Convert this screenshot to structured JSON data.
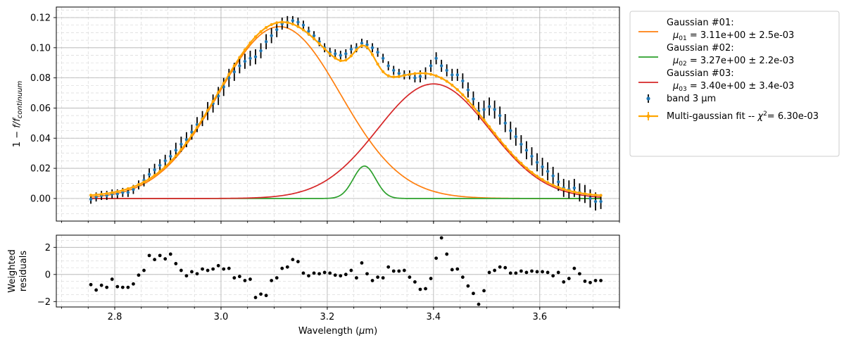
{
  "chart_data": {
    "type": "line",
    "x_axis": {
      "label": "Wavelength (μm)",
      "lim": [
        2.69,
        3.75
      ],
      "major_ticks": [
        2.8,
        3.0,
        3.2,
        3.4,
        3.6
      ],
      "tick_labels": [
        "2.8",
        "3.0",
        "3.2",
        "3.4",
        "3.6"
      ],
      "minor_step": 0.05
    },
    "top": {
      "ylabel": "1 − f/f_continuum",
      "ylim": [
        -0.015,
        0.127
      ],
      "yticks": [
        0.0,
        0.02,
        0.04,
        0.06,
        0.08,
        0.1,
        0.12
      ],
      "ytick_labels": [
        "0.00",
        "0.02",
        "0.04",
        "0.06",
        "0.08",
        "0.10",
        "0.12"
      ],
      "minor_step": 0.005,
      "grid": true
    },
    "bottom": {
      "ylabel_line1": "Weighted",
      "ylabel_line2": "residuals",
      "ylim": [
        -2.4,
        2.9
      ],
      "yticks": [
        -2,
        0,
        2
      ],
      "ytick_labels": [
        "−2",
        "0",
        "2"
      ],
      "minor_step": 0.5,
      "grid": true,
      "residuals": [
        [
          2.755,
          -0.75
        ],
        [
          2.765,
          -1.15
        ],
        [
          2.775,
          -0.8
        ],
        [
          2.785,
          -0.95
        ],
        [
          2.795,
          -0.35
        ],
        [
          2.805,
          -0.9
        ],
        [
          2.815,
          -0.95
        ],
        [
          2.825,
          -0.95
        ],
        [
          2.835,
          -0.7
        ],
        [
          2.845,
          -0.05
        ],
        [
          2.855,
          0.3
        ],
        [
          2.865,
          1.4
        ],
        [
          2.875,
          1.1
        ],
        [
          2.885,
          1.4
        ],
        [
          2.895,
          1.15
        ],
        [
          2.905,
          1.5
        ],
        [
          2.915,
          0.8
        ],
        [
          2.925,
          0.3
        ],
        [
          2.935,
          -0.1
        ],
        [
          2.945,
          0.2
        ],
        [
          2.955,
          0.05
        ],
        [
          2.965,
          0.4
        ],
        [
          2.975,
          0.3
        ],
        [
          2.985,
          0.4
        ],
        [
          2.995,
          0.65
        ],
        [
          3.005,
          0.4
        ],
        [
          3.015,
          0.45
        ],
        [
          3.025,
          -0.25
        ],
        [
          3.035,
          -0.15
        ],
        [
          3.045,
          -0.45
        ],
        [
          3.055,
          -0.35
        ],
        [
          3.065,
          -1.7
        ],
        [
          3.075,
          -1.45
        ],
        [
          3.085,
          -1.55
        ],
        [
          3.095,
          -0.45
        ],
        [
          3.105,
          -0.25
        ],
        [
          3.115,
          0.45
        ],
        [
          3.125,
          0.55
        ],
        [
          3.135,
          1.1
        ],
        [
          3.145,
          0.95
        ],
        [
          3.155,
          0.1
        ],
        [
          3.165,
          -0.1
        ],
        [
          3.175,
          0.1
        ],
        [
          3.185,
          0.05
        ],
        [
          3.195,
          0.15
        ],
        [
          3.205,
          0.1
        ],
        [
          3.215,
          -0.05
        ],
        [
          3.225,
          -0.1
        ],
        [
          3.235,
          0.0
        ],
        [
          3.245,
          0.3
        ],
        [
          3.255,
          -0.25
        ],
        [
          3.265,
          0.85
        ],
        [
          3.275,
          0.05
        ],
        [
          3.285,
          -0.45
        ],
        [
          3.295,
          -0.2
        ],
        [
          3.305,
          -0.25
        ],
        [
          3.315,
          0.55
        ],
        [
          3.325,
          0.25
        ],
        [
          3.335,
          0.25
        ],
        [
          3.345,
          0.3
        ],
        [
          3.355,
          -0.2
        ],
        [
          3.365,
          -0.55
        ],
        [
          3.375,
          -1.1
        ],
        [
          3.385,
          -1.05
        ],
        [
          3.395,
          -0.3
        ],
        [
          3.405,
          1.2
        ],
        [
          3.415,
          2.7
        ],
        [
          3.425,
          1.5
        ],
        [
          3.435,
          0.35
        ],
        [
          3.445,
          0.4
        ],
        [
          3.455,
          -0.2
        ],
        [
          3.465,
          -0.85
        ],
        [
          3.475,
          -1.4
        ],
        [
          3.485,
          -2.2
        ],
        [
          3.495,
          -1.2
        ],
        [
          3.505,
          0.15
        ],
        [
          3.515,
          0.3
        ],
        [
          3.525,
          0.55
        ],
        [
          3.535,
          0.5
        ],
        [
          3.545,
          0.1
        ],
        [
          3.555,
          0.1
        ],
        [
          3.565,
          0.25
        ],
        [
          3.575,
          0.15
        ],
        [
          3.585,
          0.25
        ],
        [
          3.595,
          0.2
        ],
        [
          3.605,
          0.2
        ],
        [
          3.615,
          0.15
        ],
        [
          3.625,
          -0.1
        ],
        [
          3.635,
          0.15
        ],
        [
          3.645,
          -0.55
        ],
        [
          3.655,
          -0.3
        ],
        [
          3.665,
          0.45
        ],
        [
          3.675,
          0.05
        ],
        [
          3.685,
          -0.5
        ],
        [
          3.695,
          -0.6
        ],
        [
          3.705,
          -0.45
        ],
        [
          3.715,
          -0.45
        ]
      ]
    },
    "series": [
      {
        "name": "Gaussian #01:",
        "detail": "μ01 =  3.11e+00 ±  2.5e-03",
        "color": "#ff7f0e",
        "kind": "gaussian",
        "mu": 3.11,
        "amp": 0.114,
        "sigma": 0.115
      },
      {
        "name": "Gaussian #02:",
        "detail": "μ02 =  3.27e+00 ±  2.2e-03",
        "color": "#2ca02c",
        "kind": "gaussian",
        "mu": 3.27,
        "amp": 0.0215,
        "sigma": 0.021
      },
      {
        "name": "Gaussian #03:",
        "detail": "μ03 =  3.40e+00 ±  3.4e-03",
        "color": "#d62728",
        "kind": "gaussian",
        "mu": 3.4,
        "amp": 0.076,
        "sigma": 0.105
      },
      {
        "name": "band 3 μm",
        "detail": "",
        "color": "#1f77b4",
        "kind": "data",
        "points": [
          [
            2.755,
            -0.0005,
            0.003
          ],
          [
            2.765,
            0.001,
            0.003
          ],
          [
            2.775,
            0.002,
            0.003
          ],
          [
            2.785,
            0.002,
            0.003
          ],
          [
            2.795,
            0.003,
            0.003
          ],
          [
            2.805,
            0.003,
            0.003
          ],
          [
            2.815,
            0.004,
            0.003
          ],
          [
            2.825,
            0.004,
            0.003
          ],
          [
            2.835,
            0.006,
            0.003
          ],
          [
            2.845,
            0.009,
            0.003
          ],
          [
            2.855,
            0.012,
            0.004
          ],
          [
            2.865,
            0.016,
            0.004
          ],
          [
            2.875,
            0.019,
            0.004
          ],
          [
            2.885,
            0.022,
            0.004
          ],
          [
            2.895,
            0.025,
            0.004
          ],
          [
            2.905,
            0.028,
            0.004
          ],
          [
            2.915,
            0.032,
            0.005
          ],
          [
            2.925,
            0.036,
            0.005
          ],
          [
            2.935,
            0.039,
            0.005
          ],
          [
            2.945,
            0.044,
            0.005
          ],
          [
            2.955,
            0.049,
            0.005
          ],
          [
            2.965,
            0.053,
            0.005
          ],
          [
            2.975,
            0.058,
            0.006
          ],
          [
            2.985,
            0.063,
            0.006
          ],
          [
            2.995,
            0.068,
            0.006
          ],
          [
            3.005,
            0.074,
            0.006
          ],
          [
            3.015,
            0.08,
            0.006
          ],
          [
            3.025,
            0.084,
            0.006
          ],
          [
            3.035,
            0.088,
            0.005
          ],
          [
            3.045,
            0.091,
            0.005
          ],
          [
            3.055,
            0.093,
            0.005
          ],
          [
            3.065,
            0.094,
            0.005
          ],
          [
            3.075,
            0.098,
            0.005
          ],
          [
            3.085,
            0.104,
            0.005
          ],
          [
            3.095,
            0.108,
            0.005
          ],
          [
            3.105,
            0.112,
            0.005
          ],
          [
            3.115,
            0.116,
            0.004
          ],
          [
            3.125,
            0.117,
            0.004
          ],
          [
            3.135,
            0.118,
            0.003
          ],
          [
            3.145,
            0.117,
            0.003
          ],
          [
            3.155,
            0.115,
            0.003
          ],
          [
            3.165,
            0.111,
            0.003
          ],
          [
            3.175,
            0.108,
            0.003
          ],
          [
            3.185,
            0.104,
            0.003
          ],
          [
            3.195,
            0.1,
            0.003
          ],
          [
            3.205,
            0.097,
            0.003
          ],
          [
            3.215,
            0.096,
            0.003
          ],
          [
            3.225,
            0.095,
            0.003
          ],
          [
            3.235,
            0.096,
            0.003
          ],
          [
            3.245,
            0.099,
            0.003
          ],
          [
            3.255,
            0.1,
            0.003
          ],
          [
            3.265,
            0.103,
            0.003
          ],
          [
            3.275,
            0.102,
            0.003
          ],
          [
            3.285,
            0.1,
            0.003
          ],
          [
            3.295,
            0.097,
            0.003
          ],
          [
            3.305,
            0.093,
            0.003
          ],
          [
            3.315,
            0.088,
            0.003
          ],
          [
            3.325,
            0.085,
            0.003
          ],
          [
            3.335,
            0.083,
            0.003
          ],
          [
            3.345,
            0.082,
            0.003
          ],
          [
            3.355,
            0.082,
            0.003
          ],
          [
            3.365,
            0.08,
            0.003
          ],
          [
            3.375,
            0.081,
            0.004
          ],
          [
            3.385,
            0.083,
            0.004
          ],
          [
            3.395,
            0.088,
            0.004
          ],
          [
            3.405,
            0.093,
            0.004
          ],
          [
            3.415,
            0.088,
            0.004
          ],
          [
            3.425,
            0.085,
            0.004
          ],
          [
            3.435,
            0.082,
            0.004
          ],
          [
            3.445,
            0.082,
            0.004
          ],
          [
            3.455,
            0.078,
            0.005
          ],
          [
            3.465,
            0.072,
            0.005
          ],
          [
            3.475,
            0.066,
            0.005
          ],
          [
            3.485,
            0.058,
            0.006
          ],
          [
            3.495,
            0.059,
            0.006
          ],
          [
            3.505,
            0.061,
            0.006
          ],
          [
            3.515,
            0.059,
            0.006
          ],
          [
            3.525,
            0.055,
            0.006
          ],
          [
            3.535,
            0.05,
            0.006
          ],
          [
            3.545,
            0.045,
            0.006
          ],
          [
            3.555,
            0.041,
            0.006
          ],
          [
            3.565,
            0.036,
            0.006
          ],
          [
            3.575,
            0.032,
            0.006
          ],
          [
            3.585,
            0.028,
            0.006
          ],
          [
            3.595,
            0.024,
            0.006
          ],
          [
            3.605,
            0.021,
            0.006
          ],
          [
            3.615,
            0.018,
            0.006
          ],
          [
            3.625,
            0.015,
            0.006
          ],
          [
            3.635,
            0.011,
            0.006
          ],
          [
            3.645,
            0.007,
            0.006
          ],
          [
            3.655,
            0.006,
            0.006
          ],
          [
            3.665,
            0.007,
            0.006
          ],
          [
            3.675,
            0.004,
            0.006
          ],
          [
            3.685,
            0.003,
            0.006
          ],
          [
            3.695,
            0.0,
            0.006
          ],
          [
            3.705,
            -0.002,
            0.006
          ],
          [
            3.715,
            -0.002,
            0.005
          ]
        ]
      },
      {
        "name": "Multi-gaussian fit -- χ²=  6.30e-03",
        "detail": "",
        "color": "#ffa500",
        "kind": "fit"
      }
    ]
  }
}
